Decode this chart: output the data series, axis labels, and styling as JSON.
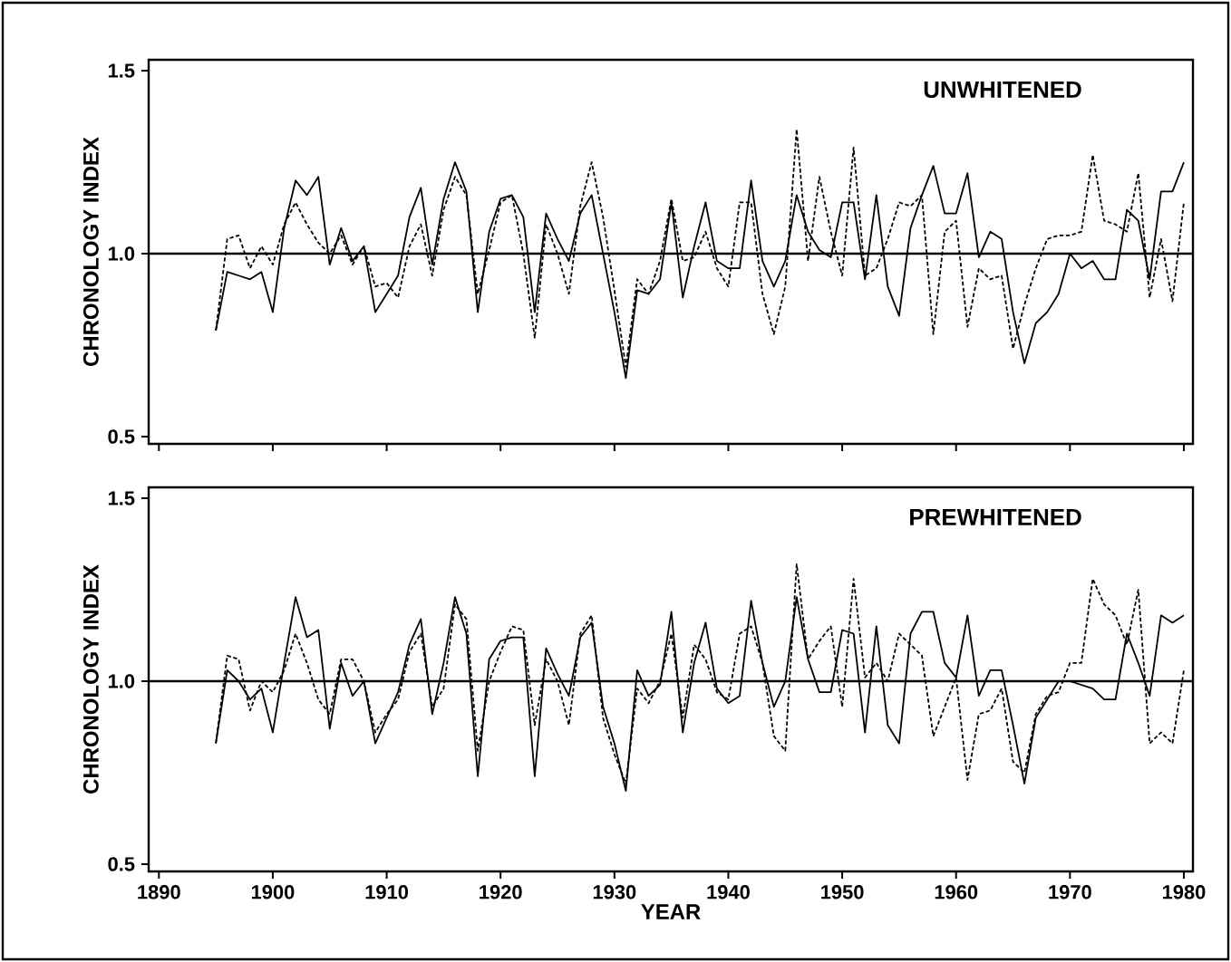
{
  "chart_data": [
    {
      "type": "line",
      "ylabel": "CHRONOLOGY INDEX",
      "annotations": [
        "UNWHITENED"
      ],
      "tick_labels": "y",
      "marker": "none",
      "x": [
        1895,
        1896,
        1897,
        1898,
        1899,
        1900,
        1901,
        1902,
        1903,
        1904,
        1905,
        1906,
        1907,
        1908,
        1909,
        1910,
        1911,
        1912,
        1913,
        1914,
        1915,
        1916,
        1917,
        1918,
        1919,
        1920,
        1921,
        1922,
        1923,
        1924,
        1925,
        1926,
        1927,
        1928,
        1929,
        1930,
        1931,
        1932,
        1933,
        1934,
        1935,
        1936,
        1937,
        1938,
        1939,
        1940,
        1941,
        1942,
        1943,
        1944,
        1945,
        1946,
        1947,
        1948,
        1949,
        1950,
        1951,
        1952,
        1953,
        1954,
        1955,
        1956,
        1957,
        1958,
        1959,
        1960,
        1961,
        1962,
        1963,
        1964,
        1965,
        1966,
        1967,
        1968,
        1969,
        1970,
        1971,
        1972,
        1973,
        1974,
        1975,
        1976,
        1977,
        1978,
        1979,
        1980
      ],
      "xlim": [
        1889.1,
        1980.8
      ],
      "xticks": [
        1890,
        1900,
        1910,
        1920,
        1930,
        1940,
        1950,
        1960,
        1970,
        1980
      ],
      "ylim": [
        0.48,
        1.53
      ],
      "yticks": [
        {
          "value": 0.5,
          "label": "0.5"
        },
        {
          "value": 1.0,
          "label": "1.0"
        },
        {
          "value": 1.5,
          "label": "1.5"
        }
      ],
      "ref_lines": [
        {
          "axis": "y",
          "value": 1.0,
          "color": "#000000"
        }
      ],
      "series": [
        {
          "color": "#000000",
          "line_style": "solid",
          "values": [
            0.79,
            0.95,
            0.94,
            0.93,
            0.95,
            0.84,
            1.07,
            1.2,
            1.16,
            1.21,
            0.97,
            1.07,
            0.98,
            1.02,
            0.84,
            0.89,
            0.94,
            1.1,
            1.18,
            0.97,
            1.15,
            1.25,
            1.17,
            0.84,
            1.06,
            1.15,
            1.16,
            1.1,
            0.84,
            1.11,
            1.04,
            0.98,
            1.11,
            1.16,
            1.0,
            0.84,
            0.66,
            0.9,
            0.89,
            0.93,
            1.14,
            0.88,
            1.02,
            1.14,
            0.98,
            0.96,
            0.96,
            1.2,
            0.98,
            0.91,
            0.98,
            1.16,
            1.06,
            1.01,
            0.99,
            1.14,
            1.14,
            0.93,
            1.16,
            0.91,
            0.83,
            1.07,
            1.16,
            1.24,
            1.11,
            1.11,
            1.22,
            0.99,
            1.06,
            1.04,
            0.84,
            0.7,
            0.81,
            0.84,
            0.89,
            1.0,
            0.96,
            0.98,
            0.93,
            0.93,
            1.12,
            1.09,
            0.93,
            1.17,
            1.17,
            1.25
          ]
        },
        {
          "color": "#000000",
          "line_style": "dashed",
          "values": [
            0.79,
            1.04,
            1.05,
            0.96,
            1.02,
            0.97,
            1.08,
            1.14,
            1.08,
            1.03,
            1.0,
            1.05,
            0.97,
            1.02,
            0.91,
            0.92,
            0.88,
            1.02,
            1.08,
            0.94,
            1.12,
            1.21,
            1.16,
            0.89,
            1.01,
            1.14,
            1.16,
            1.0,
            0.77,
            1.08,
            1.0,
            0.89,
            1.13,
            1.25,
            1.1,
            0.9,
            0.69,
            0.93,
            0.89,
            0.98,
            1.15,
            0.98,
            0.99,
            1.06,
            0.96,
            0.91,
            1.14,
            1.14,
            0.89,
            0.78,
            0.91,
            1.34,
            0.98,
            1.21,
            1.06,
            0.94,
            1.29,
            0.94,
            0.96,
            1.04,
            1.14,
            1.13,
            1.16,
            0.78,
            1.06,
            1.09,
            0.8,
            0.96,
            0.93,
            0.94,
            0.74,
            0.86,
            0.96,
            1.04,
            1.05,
            1.05,
            1.06,
            1.27,
            1.09,
            1.08,
            1.06,
            1.22,
            0.88,
            1.04,
            0.87,
            1.14
          ]
        }
      ]
    },
    {
      "type": "line",
      "ylabel": "CHRONOLOGY INDEX",
      "xlabel": "YEAR",
      "annotations": [
        "PREWHITENED"
      ],
      "marker": "none",
      "x": [
        1895,
        1896,
        1897,
        1898,
        1899,
        1900,
        1901,
        1902,
        1903,
        1904,
        1905,
        1906,
        1907,
        1908,
        1909,
        1910,
        1911,
        1912,
        1913,
        1914,
        1915,
        1916,
        1917,
        1918,
        1919,
        1920,
        1921,
        1922,
        1923,
        1924,
        1925,
        1926,
        1927,
        1928,
        1929,
        1930,
        1931,
        1932,
        1933,
        1934,
        1935,
        1936,
        1937,
        1938,
        1939,
        1940,
        1941,
        1942,
        1943,
        1944,
        1945,
        1946,
        1947,
        1948,
        1949,
        1950,
        1951,
        1952,
        1953,
        1954,
        1955,
        1956,
        1957,
        1958,
        1959,
        1960,
        1961,
        1962,
        1963,
        1964,
        1965,
        1966,
        1967,
        1968,
        1969,
        1970,
        1971,
        1972,
        1973,
        1974,
        1975,
        1976,
        1977,
        1978,
        1979,
        1980
      ],
      "xlim": [
        1889.1,
        1980.8
      ],
      "xticks": [
        1890,
        1900,
        1910,
        1920,
        1930,
        1940,
        1950,
        1960,
        1970,
        1980
      ],
      "ylim": [
        0.48,
        1.53
      ],
      "yticks": [
        {
          "value": 0.5,
          "label": "0.5"
        },
        {
          "value": 1.0,
          "label": "1.0"
        },
        {
          "value": 1.5,
          "label": "1.5"
        }
      ],
      "ref_lines": [
        {
          "axis": "y",
          "value": 1.0,
          "color": "#000000"
        }
      ],
      "series": [
        {
          "color": "#000000",
          "line_style": "solid",
          "values": [
            0.83,
            1.03,
            1.0,
            0.95,
            0.98,
            0.86,
            1.05,
            1.23,
            1.12,
            1.14,
            0.87,
            1.05,
            0.96,
            1.0,
            0.83,
            0.9,
            0.97,
            1.1,
            1.17,
            0.91,
            1.05,
            1.23,
            1.13,
            0.74,
            1.06,
            1.11,
            1.12,
            1.12,
            0.74,
            1.09,
            1.02,
            0.96,
            1.12,
            1.16,
            0.93,
            0.83,
            0.7,
            1.03,
            0.96,
            0.99,
            1.19,
            0.86,
            1.05,
            1.16,
            0.98,
            0.94,
            0.96,
            1.22,
            1.05,
            0.93,
            1.0,
            1.23,
            1.06,
            0.97,
            0.97,
            1.14,
            1.13,
            0.86,
            1.15,
            0.88,
            0.83,
            1.13,
            1.19,
            1.19,
            1.05,
            1.01,
            1.18,
            0.96,
            1.03,
            1.03,
            0.88,
            0.72,
            0.9,
            0.95,
            1.0,
            1.0,
            0.99,
            0.98,
            0.95,
            0.95,
            1.13,
            1.05,
            0.96,
            1.18,
            1.16,
            1.18
          ]
        },
        {
          "color": "#000000",
          "line_style": "dashed",
          "values": [
            0.83,
            1.07,
            1.06,
            0.92,
            1.0,
            0.97,
            1.03,
            1.13,
            1.05,
            0.95,
            0.91,
            1.06,
            1.06,
            1.0,
            0.86,
            0.91,
            0.95,
            1.08,
            1.13,
            0.93,
            0.98,
            1.21,
            1.17,
            0.81,
            1.0,
            1.08,
            1.15,
            1.14,
            0.88,
            1.06,
            1.0,
            0.88,
            1.13,
            1.18,
            0.9,
            0.8,
            0.72,
            0.98,
            0.94,
            1.0,
            1.13,
            0.9,
            1.1,
            1.06,
            0.97,
            0.95,
            1.13,
            1.15,
            1.05,
            0.85,
            0.81,
            1.32,
            1.06,
            1.11,
            1.15,
            0.93,
            1.28,
            1.01,
            1.05,
            1.0,
            1.13,
            1.1,
            1.07,
            0.85,
            0.93,
            1.01,
            0.73,
            0.91,
            0.92,
            0.98,
            0.78,
            0.75,
            0.91,
            0.96,
            0.97,
            1.05,
            1.05,
            1.28,
            1.21,
            1.18,
            1.1,
            1.25,
            0.83,
            0.86,
            0.83,
            1.03
          ]
        }
      ]
    }
  ]
}
